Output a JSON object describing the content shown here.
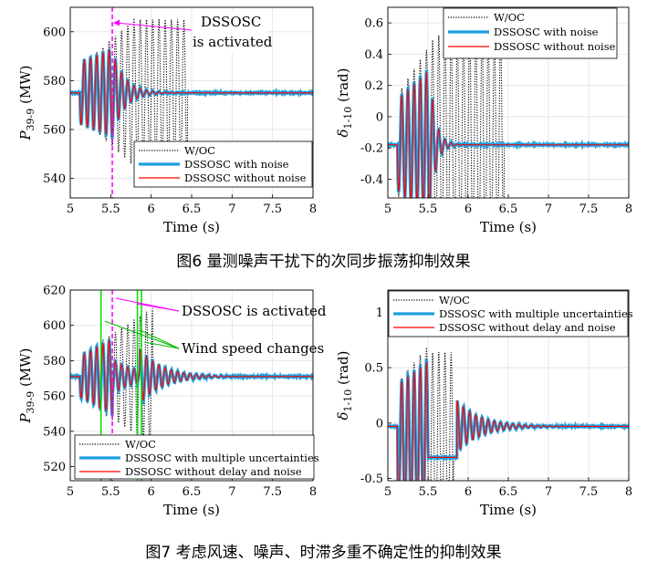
{
  "captions": {
    "fig6": "图6 量测噪声干扰下的次同步振荡抑制效果",
    "fig7": "图7 考虑风速、噪声、时滞多重不确定性的抑制效果"
  },
  "chart_data": [
    {
      "type": "line",
      "id": "fig6-power",
      "xlabel": "Time (s)",
      "ylabel_main": "P",
      "ylabel_sub": "39-9",
      "ylabel_unit": "(MW)",
      "xlim": [
        5,
        8
      ],
      "ylim": [
        532,
        610
      ],
      "xticks": [
        5,
        5.5,
        6,
        6.5,
        7,
        7.5,
        8
      ],
      "xtick_labels": [
        "5",
        "5.5",
        "6",
        "6.5",
        "7",
        "7.5",
        "8"
      ],
      "yticks": [
        540,
        560,
        580,
        600
      ],
      "ytick_labels": [
        "540",
        "560",
        "580",
        "600"
      ],
      "steady": 575,
      "grid": true,
      "legend_position": "bottom-right",
      "annotations": [
        {
          "text_lines": [
            "DSSOSC",
            "is activated"
          ],
          "x": 5.52
        }
      ],
      "activation_line_x": 5.52,
      "series": [
        {
          "name": "W/OC",
          "style": "dotted",
          "color": "#000000",
          "amplitude": "grows to 30, oscillating until about 6.45"
        },
        {
          "name": "DSSOSC with noise",
          "style": "solid-thick",
          "color": "#1ea0e0",
          "amplitude": "about 15, damped after 5.52"
        },
        {
          "name": "DSSOSC without noise",
          "style": "solid",
          "color": "#ff0000",
          "amplitude": "about 15, damped after 5.52"
        }
      ]
    },
    {
      "type": "line",
      "id": "fig6-angle",
      "xlabel": "Time (s)",
      "ylabel_main": "δ",
      "ylabel_sub": "1-10",
      "ylabel_unit": "(rad)",
      "xlim": [
        5,
        8
      ],
      "ylim": [
        -0.52,
        0.7
      ],
      "xticks": [
        5,
        5.5,
        6,
        6.5,
        7,
        7.5,
        8
      ],
      "xtick_labels": [
        "5",
        "5.5",
        "6",
        "6.5",
        "7",
        "7.5",
        "8"
      ],
      "yticks": [
        -0.4,
        -0.2,
        0,
        0.2,
        0.4,
        0.6
      ],
      "ytick_labels": [
        "-0.4",
        "-0.2",
        "0",
        "0.2",
        "0.4",
        "0.6"
      ],
      "steady": -0.18,
      "grid": true,
      "legend_position": "top-right",
      "series": [
        {
          "name": "W/OC",
          "style": "dotted",
          "color": "#000000"
        },
        {
          "name": "DSSOSC with noise",
          "style": "solid-thick",
          "color": "#1ea0e0"
        },
        {
          "name": "DSSOSC without noise",
          "style": "solid",
          "color": "#ff0000"
        }
      ]
    },
    {
      "type": "line",
      "id": "fig7-power",
      "xlabel": "Time (s)",
      "ylabel_main": "P",
      "ylabel_sub": "39-9",
      "ylabel_unit": "(MW)",
      "xlim": [
        5,
        8
      ],
      "ylim": [
        512,
        620
      ],
      "xticks": [
        5,
        5.5,
        6,
        6.5,
        7,
        7.5,
        8
      ],
      "xtick_labels": [
        "5",
        "5.5",
        "6",
        "6.5",
        "7",
        "7.5",
        "8"
      ],
      "yticks": [
        520,
        540,
        560,
        580,
        600,
        620
      ],
      "ytick_labels": [
        "520",
        "540",
        "560",
        "580",
        "600",
        "620"
      ],
      "steady": 571,
      "grid": true,
      "legend_position": "bottom-right",
      "annotations": [
        {
          "text_lines": [
            "DSSOSC is activated"
          ],
          "x": 5.52
        },
        {
          "text_lines": [
            "Wind speed changes"
          ],
          "x": 5.38
        }
      ],
      "activation_line_x": 5.52,
      "wind_lines_x": [
        5.38,
        5.83,
        5.88
      ],
      "series": [
        {
          "name": "W/OC",
          "style": "dotted",
          "color": "#000000"
        },
        {
          "name": "DSSOSC with multiple uncertainties",
          "style": "solid-thick",
          "color": "#1ea0e0"
        },
        {
          "name": "DSSOSC without delay and noise",
          "style": "solid",
          "color": "#ff0000"
        }
      ]
    },
    {
      "type": "line",
      "id": "fig7-angle",
      "xlabel": "Time (s)",
      "ylabel_main": "δ",
      "ylabel_sub": "1-10",
      "ylabel_unit": "(rad)",
      "xlim": [
        5,
        8
      ],
      "ylim": [
        -0.52,
        1.2
      ],
      "xticks": [
        5,
        5.5,
        6,
        6.5,
        7,
        7.5,
        8
      ],
      "xtick_labels": [
        "5",
        "5.5",
        "6",
        "6.5",
        "7",
        "7.5",
        "8"
      ],
      "yticks": [
        -0.5,
        0,
        0.5,
        1
      ],
      "ytick_labels": [
        "-0.5",
        "0",
        "0.5",
        "1"
      ],
      "steady": -0.03,
      "grid": true,
      "legend_position": "top",
      "series": [
        {
          "name": "W/OC",
          "style": "dotted",
          "color": "#000000"
        },
        {
          "name": "DSSOSC with multiple uncertainties",
          "style": "solid-thick",
          "color": "#1ea0e0"
        },
        {
          "name": "DSSOSC without delay and noise",
          "style": "solid",
          "color": "#ff0000"
        }
      ]
    }
  ]
}
